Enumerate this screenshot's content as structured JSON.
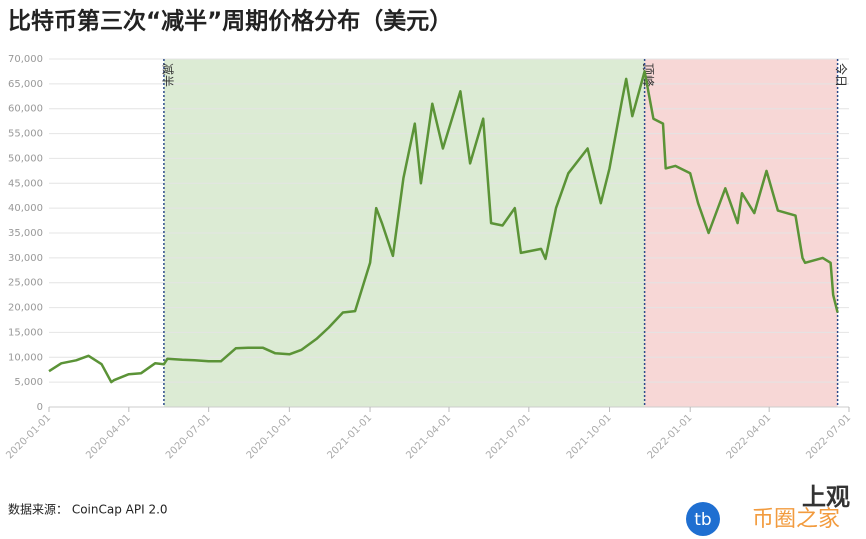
{
  "chart_data": {
    "type": "line",
    "title": "比特币第三次“减半”周期价格分布（美元）",
    "source": "数据来源：  CoinCap API 2.0",
    "watermarks": [
      "tb",
      "币圈之家",
      "上观"
    ],
    "color": "#5b9337",
    "x": [
      "2020-01-01",
      "2020-01-15",
      "2020-02-01",
      "2020-02-15",
      "2020-03-01",
      "2020-03-12",
      "2020-03-15",
      "2020-04-01",
      "2020-04-15",
      "2020-05-01",
      "2020-05-11",
      "2020-05-15",
      "2020-06-01",
      "2020-06-15",
      "2020-07-01",
      "2020-07-15",
      "2020-08-01",
      "2020-08-15",
      "2020-09-01",
      "2020-09-15",
      "2020-10-01",
      "2020-10-15",
      "2020-11-01",
      "2020-11-15",
      "2020-12-01",
      "2020-12-15",
      "2021-01-01",
      "2021-01-08",
      "2021-01-15",
      "2021-01-27",
      "2021-02-08",
      "2021-02-21",
      "2021-02-28",
      "2021-03-13",
      "2021-03-25",
      "2021-04-14",
      "2021-04-25",
      "2021-05-10",
      "2021-05-19",
      "2021-06-01",
      "2021-06-15",
      "2021-06-22",
      "2021-07-15",
      "2021-07-20",
      "2021-08-01",
      "2021-08-15",
      "2021-09-06",
      "2021-09-21",
      "2021-10-01",
      "2021-10-15",
      "2021-10-20",
      "2021-10-27",
      "2021-11-10",
      "2021-11-20",
      "2021-12-01",
      "2021-12-04",
      "2021-12-15",
      "2022-01-01",
      "2022-01-10",
      "2022-01-22",
      "2022-02-10",
      "2022-02-24",
      "2022-03-01",
      "2022-03-15",
      "2022-03-29",
      "2022-04-11",
      "2022-05-01",
      "2022-05-09",
      "2022-05-12",
      "2022-06-01",
      "2022-06-10",
      "2022-06-13",
      "2022-06-18"
    ],
    "values": [
      7200,
      8800,
      9400,
      10300,
      8600,
      5000,
      5400,
      6600,
      6800,
      8800,
      8600,
      9700,
      9500,
      9400,
      9200,
      9200,
      11800,
      11900,
      11900,
      10800,
      10600,
      11500,
      13700,
      16000,
      19000,
      19300,
      29000,
      40000,
      36800,
      30400,
      46000,
      57000,
      45000,
      61000,
      52000,
      63500,
      49000,
      58000,
      37000,
      36500,
      40000,
      31000,
      31800,
      29800,
      40000,
      47000,
      52000,
      41000,
      48000,
      61500,
      66000,
      58500,
      67500,
      58000,
      57000,
      48000,
      48500,
      47000,
      41000,
      35000,
      44000,
      37000,
      43000,
      39000,
      47500,
      39500,
      38500,
      30000,
      29000,
      30000,
      29000,
      22500,
      19000
    ],
    "xlim": [
      "2020-01-01",
      "2022-07-01"
    ],
    "xticks": [
      "2020-01-01",
      "2020-04-01",
      "2020-07-01",
      "2020-10-01",
      "2021-01-01",
      "2021-04-01",
      "2021-07-01",
      "2021-10-01",
      "2022-01-01",
      "2022-04-01",
      "2022-07-01"
    ],
    "ylim": [
      0,
      70000
    ],
    "yticks": [
      0,
      {
        "value": 5000,
        "label": "5,000"
      },
      {
        "value": 10000,
        "label": "10,000"
      },
      {
        "value": 15000,
        "label": "15,000"
      },
      {
        "value": 20000,
        "label": "20,000"
      },
      {
        "value": 25000,
        "label": "25,000"
      },
      {
        "value": 30000,
        "label": "30,000"
      },
      {
        "value": 35000,
        "label": "35,000"
      },
      {
        "value": 40000,
        "label": "40,000"
      },
      {
        "value": 45000,
        "label": "45,000"
      },
      {
        "value": 50000,
        "label": "50,000"
      },
      {
        "value": 55000,
        "label": "55,000"
      },
      {
        "value": 60000,
        "label": "60,000"
      },
      {
        "value": 65000,
        "label": "65,000"
      },
      {
        "value": 70000,
        "label": "70,000"
      }
    ],
    "grid": true,
    "annotations": [
      {
        "label": "减半",
        "x": "2020-05-11"
      },
      {
        "label": "顶峰",
        "x": "2021-11-10"
      },
      {
        "label": "今日",
        "x": "2022-06-18"
      }
    ],
    "region_colors": [
      "#dcebd4",
      "#f7d7d6"
    ]
  }
}
